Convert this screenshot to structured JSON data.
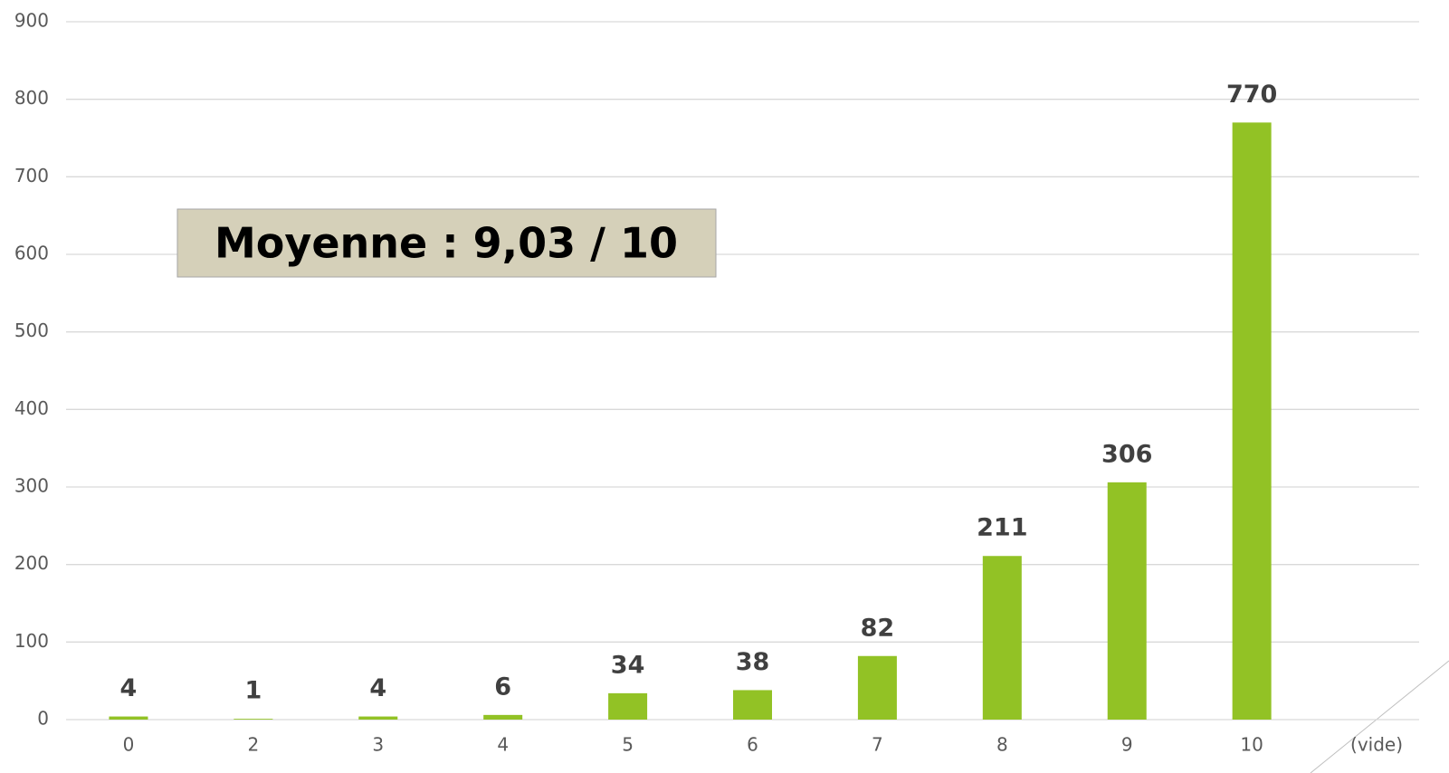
{
  "chart_data": {
    "type": "bar",
    "annotation": "Moyenne : 9,03 / 10",
    "categories": [
      "0",
      "2",
      "3",
      "4",
      "5",
      "6",
      "7",
      "8",
      "9",
      "10",
      "(vide)"
    ],
    "values": [
      4,
      1,
      4,
      6,
      34,
      38,
      82,
      211,
      306,
      770,
      null
    ],
    "color": "#92c225",
    "ylim": [
      0,
      900
    ],
    "yticks": [
      0,
      100,
      200,
      300,
      400,
      500,
      600,
      700,
      800,
      900
    ],
    "grid": true
  }
}
